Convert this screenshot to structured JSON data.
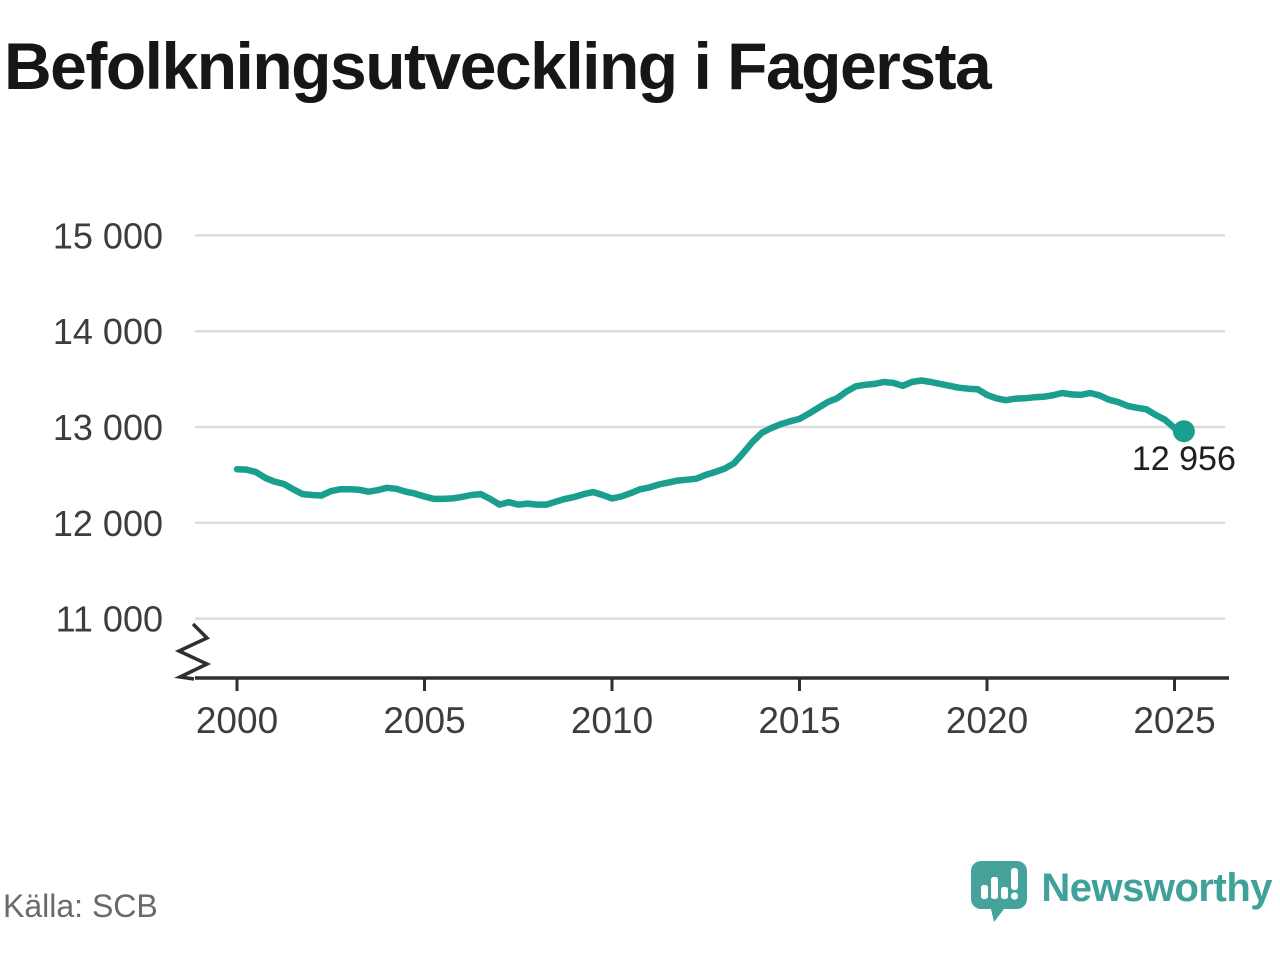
{
  "title": "Befolkningsutveckling i Fagersta",
  "source": {
    "label": "Källa: SCB"
  },
  "branding": {
    "name": "Newsworthy"
  },
  "annotation": {
    "last_value_label": "12 956"
  },
  "colors": {
    "line": "#1a9e8e",
    "grid": "#dcdcdc",
    "axis": "#2f2f2f",
    "tick_label": "#3d3d3d",
    "title_text": "#161616",
    "source_text": "#6a6a6a",
    "logo_teal": "#45a39c",
    "wordmark_teal": "#3fa19a",
    "value_label": "#1f1f1f"
  },
  "chart_data": {
    "type": "line",
    "title": "Befolkningsutveckling i Fagersta",
    "xlabel": "",
    "ylabel": "",
    "grid": "horizontal",
    "legend": "none",
    "axis_break_bottom_left": true,
    "x_tick_values": [
      2000,
      2005,
      2010,
      2015,
      2020,
      2025
    ],
    "x_tick_labels": [
      "2000",
      "2005",
      "2010",
      "2015",
      "2020",
      "2025"
    ],
    "y_tick_values": [
      15000,
      14000,
      13000,
      12000,
      11000
    ],
    "y_tick_labels": [
      "15 000",
      "14 000",
      "13 000",
      "12 000",
      "11 000"
    ],
    "xlim": [
      1998.9,
      2026.5
    ],
    "ylim_shown": [
      10700,
      15400
    ],
    "series": [
      {
        "name": "Befolkning i Fagersta (kvartalsdata)",
        "x_start": 2000.0,
        "x_step_years": 0.25,
        "x_end": 2025.25,
        "values": [
          12560,
          12555,
          12530,
          12470,
          12430,
          12405,
          12350,
          12300,
          12290,
          12285,
          12330,
          12350,
          12350,
          12345,
          12325,
          12340,
          12365,
          12355,
          12325,
          12305,
          12275,
          12250,
          12250,
          12255,
          12270,
          12290,
          12300,
          12250,
          12190,
          12215,
          12190,
          12200,
          12190,
          12190,
          12220,
          12250,
          12270,
          12300,
          12320,
          12290,
          12255,
          12275,
          12310,
          12350,
          12370,
          12400,
          12420,
          12440,
          12450,
          12460,
          12500,
          12530,
          12565,
          12620,
          12730,
          12845,
          12940,
          12990,
          13030,
          13060,
          13085,
          13140,
          13200,
          13260,
          13300,
          13370,
          13425,
          13440,
          13450,
          13470,
          13460,
          13430,
          13470,
          13485,
          13470,
          13450,
          13430,
          13410,
          13400,
          13395,
          13335,
          13300,
          13280,
          13295,
          13300,
          13310,
          13315,
          13330,
          13355,
          13340,
          13335,
          13355,
          13330,
          13285,
          13260,
          13220,
          13200,
          13185,
          13125,
          13075,
          12990,
          12956
        ],
        "last_value": 12956,
        "last_value_label": "12 956"
      }
    ]
  }
}
